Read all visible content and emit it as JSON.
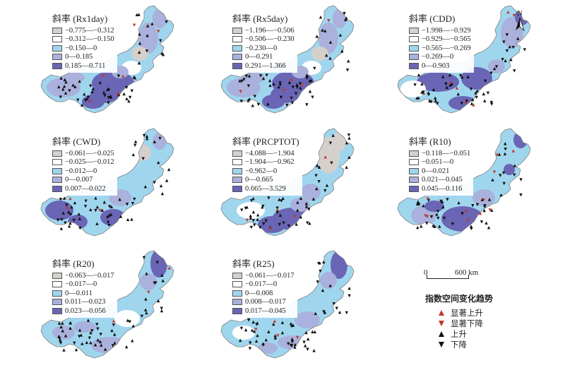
{
  "panels": [
    {
      "title": "斜率 (Rx1day)",
      "pattern": "mixed",
      "classes": [
        {
          "label": "−0.775—−0.312",
          "color": "#d6d0cc"
        },
        {
          "label": "−0.312—−0.150",
          "color": "#ffffff"
        },
        {
          "label": "−0.150—0",
          "color": "#9fd6ee"
        },
        {
          "label": "0—0.185",
          "color": "#a9b1dc"
        },
        {
          "label": "0.185—0.711",
          "color": "#6a65b4"
        }
      ]
    },
    {
      "title": "斜率 (Rx5day)",
      "pattern": "mixed",
      "classes": [
        {
          "label": "−1.196—−0.506",
          "color": "#d6d0cc"
        },
        {
          "label": "−0.506—−0.230",
          "color": "#ffffff"
        },
        {
          "label": "−0.230—0",
          "color": "#9fd6ee"
        },
        {
          "label": "0—0.291",
          "color": "#a9b1dc"
        },
        {
          "label": "0.291—1.366",
          "color": "#6a65b4"
        }
      ]
    },
    {
      "title": "斜率 (CDD)",
      "pattern": "cdd",
      "classes": [
        {
          "label": "−1.998—−0.929",
          "color": "#d6d0cc"
        },
        {
          "label": "−0.929—−0.565",
          "color": "#ffffff"
        },
        {
          "label": "−0.565—−0.269",
          "color": "#9fd6ee"
        },
        {
          "label": "−0.269—0",
          "color": "#a9b1dc"
        },
        {
          "label": "0—0.903",
          "color": "#6a65b4"
        }
      ]
    },
    {
      "title": "斜率 (CWD)",
      "pattern": "cwd",
      "classes": [
        {
          "label": "−0.061—−0.025",
          "color": "#d6d0cc"
        },
        {
          "label": "−0.025—−0.012",
          "color": "#ffffff"
        },
        {
          "label": "−0.012—0",
          "color": "#9fd6ee"
        },
        {
          "label": "0—0.007",
          "color": "#a9b1dc"
        },
        {
          "label": "0.007—0.022",
          "color": "#6a65b4"
        }
      ]
    },
    {
      "title": "斜率 (PRCPTOT)",
      "pattern": "prcp",
      "classes": [
        {
          "label": "−4.088—−1.904",
          "color": "#d6d0cc"
        },
        {
          "label": "−1.904—−0.962",
          "color": "#ffffff"
        },
        {
          "label": "−0.962—0",
          "color": "#9fd6ee"
        },
        {
          "label": "0—0.665",
          "color": "#a9b1dc"
        },
        {
          "label": "0.665—3.529",
          "color": "#6a65b4"
        }
      ]
    },
    {
      "title": "斜率 (R10)",
      "pattern": "r10",
      "classes": [
        {
          "label": "−0.118—−0.051",
          "color": "#d6d0cc"
        },
        {
          "label": "−0.051—0",
          "color": "#ffffff"
        },
        {
          "label": "0—0.021",
          "color": "#9fd6ee"
        },
        {
          "label": "0.021—0.045",
          "color": "#a9b1dc"
        },
        {
          "label": "0.045—0.116",
          "color": "#6a65b4"
        }
      ]
    },
    {
      "title": "斜率 (R20)",
      "pattern": "r20",
      "classes": [
        {
          "label": "−0.063—−0.017",
          "color": "#d6d0cc"
        },
        {
          "label": "−0.017—0",
          "color": "#ffffff"
        },
        {
          "label": "0—0.011",
          "color": "#9fd6ee"
        },
        {
          "label": "0.011—0.023",
          "color": "#a9b1dc"
        },
        {
          "label": "0.023—0.056",
          "color": "#6a65b4"
        }
      ]
    },
    {
      "title": "斜率 (R25)",
      "pattern": "r25",
      "classes": [
        {
          "label": "−0.061—−0.017",
          "color": "#d6d0cc"
        },
        {
          "label": "−0.017—0",
          "color": "#ffffff"
        },
        {
          "label": "0—0.008",
          "color": "#9fd6ee"
        },
        {
          "label": "0.008—0.017",
          "color": "#a9b1dc"
        },
        {
          "label": "0.017—0.045",
          "color": "#6a65b4"
        }
      ]
    }
  ],
  "north_label": "N",
  "scale": {
    "start": "0",
    "end": "600 km"
  },
  "trend_legend": {
    "title": "指数空间变化趋势",
    "items": [
      {
        "label": "显著上升",
        "shape": "up",
        "color": "#c0392b"
      },
      {
        "label": "显著下降",
        "shape": "down",
        "color": "#c0392b"
      },
      {
        "label": "上升",
        "shape": "up",
        "color": "#111111"
      },
      {
        "label": "下降",
        "shape": "down",
        "color": "#111111"
      }
    ]
  }
}
